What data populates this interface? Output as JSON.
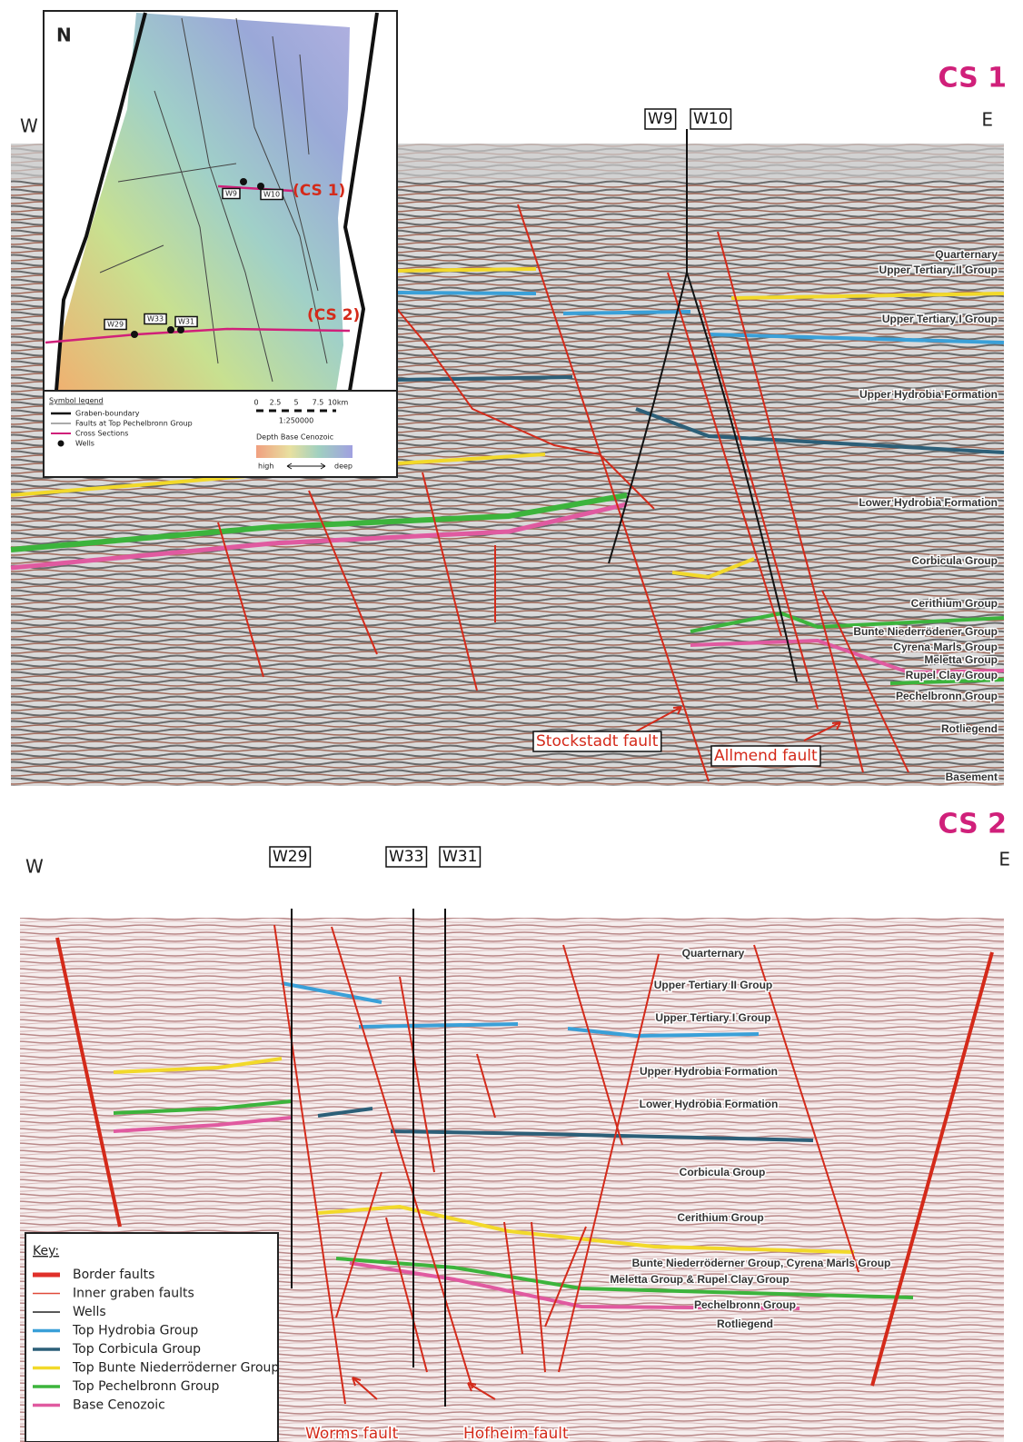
{
  "cs1": {
    "title": "CS 1",
    "west": "W",
    "east": "E",
    "wells": [
      "W9",
      "W10"
    ],
    "formations": [
      "Quarternary",
      "Upper Tertiary II Group",
      "Upper Tertiary I Group",
      "Upper Hydrobia Formation",
      "Lower Hydrobia Formation",
      "Corbicula Group",
      "Cerithium Group",
      "Bunte Niederrödener Group",
      "Cyrena Marls Group",
      "Meletta Group",
      "Rupel Clay Group",
      "Pechelbronn Group",
      "Rotliegend",
      "Basement"
    ],
    "faults": [
      "Stockstadt fault",
      "Allmend fault"
    ]
  },
  "map": {
    "north": "N",
    "wells": [
      "W9",
      "W10",
      "W29",
      "W33",
      "W31"
    ],
    "sections": [
      "(CS 1)",
      "(CS 2)"
    ],
    "legend": {
      "title": "Symbol legend",
      "items": [
        "Graben-boundary",
        "Faults at Top Pechelbronn Group",
        "Cross Sections",
        "Wells"
      ]
    },
    "scale": {
      "ticks": [
        "0",
        "2.5",
        "5",
        "7.5",
        "10km"
      ],
      "ratio": "1:250000"
    },
    "depth": {
      "title": "Depth Base Cenozoic",
      "low": "high",
      "high": "deep"
    }
  },
  "cs2": {
    "title": "CS 2",
    "west": "W",
    "east": "E",
    "wells": [
      "W29",
      "W33",
      "W31"
    ],
    "formations": [
      "Quarternary",
      "Upper Tertiary II Group",
      "Upper Tertiary I Group",
      "Upper Hydrobia Formation",
      "Lower Hydrobia Formation",
      "Corbicula Group",
      "Cerithium Group",
      "Bunte Niederröderner Group, Cyrena Marls Group",
      "Meletta Group & Rupel Clay Group",
      "Pechelbronn Group",
      "Rotliegend"
    ],
    "faults": [
      "Worms fault",
      "Hofheim fault"
    ],
    "key": {
      "title": "Key:",
      "items": [
        {
          "label": "Border faults",
          "color": "#e0302a"
        },
        {
          "label": "Inner graben faults",
          "color": "#e04a3a"
        },
        {
          "label": "Wells",
          "color": "#222222"
        },
        {
          "label": "Top Hydrobia Group",
          "color": "#3aa0d8"
        },
        {
          "label": "Top Corbicula Group",
          "color": "#2c5f78"
        },
        {
          "label": "Top Bunte Niederröderner Group",
          "color": "#f2d92a"
        },
        {
          "label": "Top Pechelbronn Group",
          "color": "#3cb43c"
        },
        {
          "label": "Base Cenozoic",
          "color": "#e05aa0"
        }
      ]
    }
  }
}
